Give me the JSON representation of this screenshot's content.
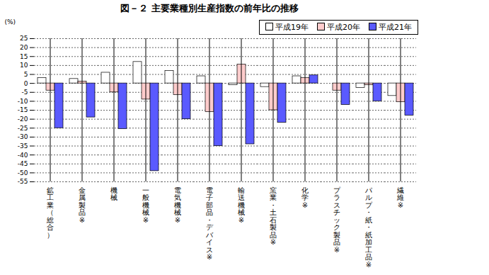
{
  "chart_data": {
    "type": "bar",
    "title": "図－２ 主要業種別生産指数の前年比の推移",
    "y_label": "(%)",
    "categories": [
      "鉱工業（総合）",
      "金属製品※",
      "機械",
      "一般機械※",
      "電気機械※",
      "電子部品・デバイス※",
      "輸送機械※",
      "窯業・土石製品※",
      "化学※",
      "プラスチック製品※",
      "パルプ・紙・紙加工品※",
      "繊維※"
    ],
    "series": [
      {
        "name": "平成19年",
        "color": "#ffffff",
        "values": [
          3,
          2.5,
          6,
          12,
          7,
          4,
          -1,
          -2,
          4,
          0,
          -2.5,
          -7
        ]
      },
      {
        "name": "平成20年",
        "color": "#ffcccc",
        "values": [
          -4,
          1,
          -5,
          -9,
          -6.5,
          -16,
          10.5,
          -15,
          3,
          -4,
          -1,
          -10.5
        ]
      },
      {
        "name": "平成21年",
        "color": "#5a5aff",
        "values": [
          -25,
          -19,
          -25.5,
          -49,
          -20,
          -35,
          -34,
          -22,
          4.5,
          -12,
          -10,
          -18
        ]
      }
    ],
    "ylim": [
      -55,
      25
    ],
    "yticks": [
      -55,
      -50,
      -45,
      -40,
      -35,
      -30,
      -25,
      -20,
      -15,
      -10,
      -5,
      0,
      5,
      10,
      15,
      20,
      25
    ],
    "grid": true,
    "legend": "top-right"
  }
}
